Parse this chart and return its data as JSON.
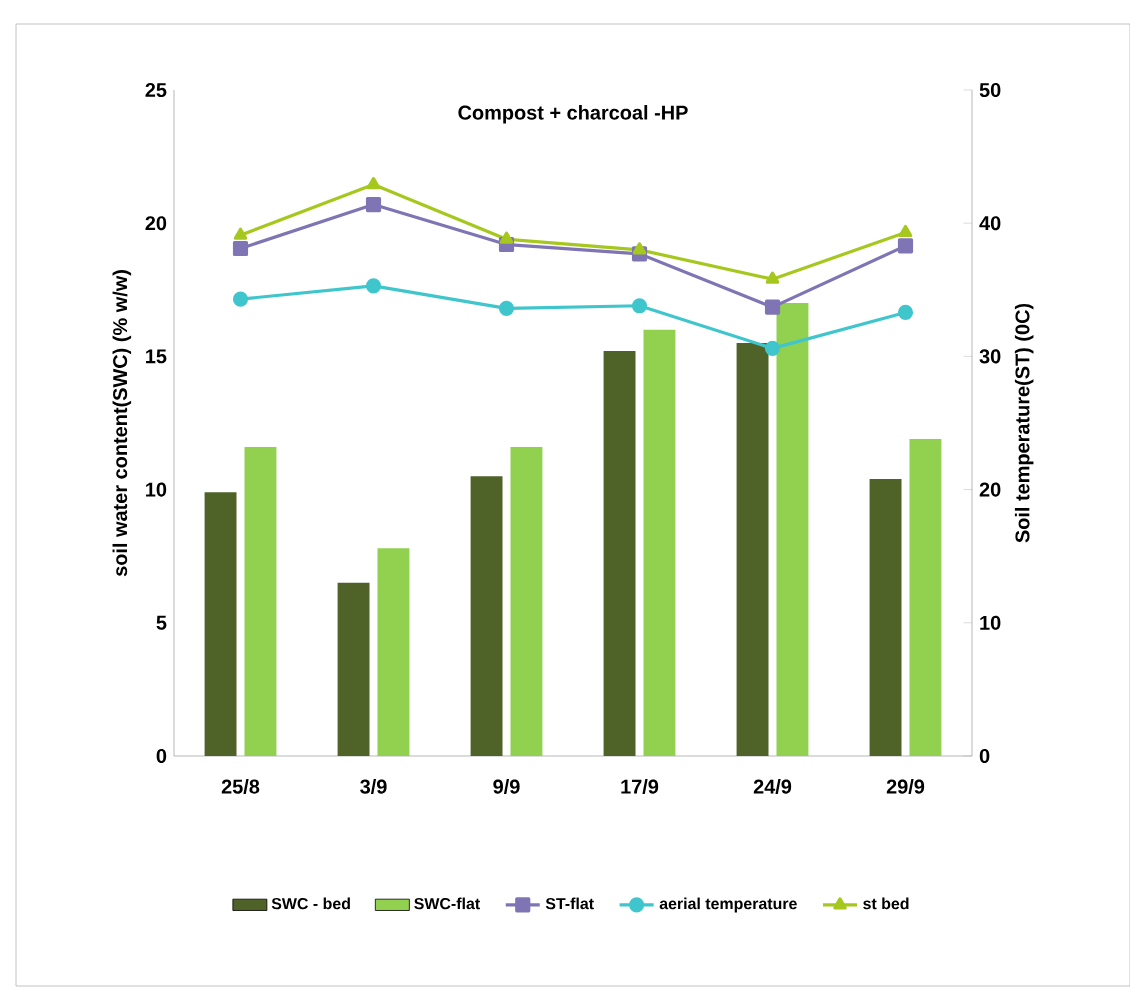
{
  "chart_data": {
    "type": "bar",
    "title": "Compost + charcoal -HP",
    "ylabel": "soil water content(SWC) (% w/w)",
    "y2label": "Soil temperature(ST) (0C)",
    "categories": [
      "25/8",
      "3/9",
      "9/9",
      "17/9",
      "24/9",
      "29/9"
    ],
    "series": [
      {
        "name": "SWC - bed",
        "color": "#4f6228",
        "values": [
          9.9,
          6.5,
          10.5,
          15.2,
          15.5,
          10.4
        ]
      },
      {
        "name": "SWC-flat",
        "color": "#92d050",
        "values": [
          11.6,
          7.8,
          11.6,
          16.0,
          17.0,
          11.9
        ]
      },
      {
        "name": "ST-flat",
        "type": "line",
        "axis": "y2",
        "marker": "square",
        "color": "#7f74b4",
        "values": [
          38.1,
          41.4,
          38.4,
          37.7,
          33.7,
          38.3
        ]
      },
      {
        "name": "aerial temperature",
        "type": "line",
        "axis": "y2",
        "marker": "circle",
        "color": "#3fc6cc",
        "values": [
          34.3,
          35.3,
          33.6,
          33.8,
          30.6,
          33.3
        ]
      },
      {
        "name": "st bed",
        "type": "line",
        "axis": "y2",
        "marker": "triangle",
        "color": "#a6c81e",
        "values": [
          39.1,
          42.9,
          38.8,
          38.0,
          35.8,
          39.3
        ]
      }
    ],
    "ylim": [
      0,
      25
    ],
    "yticks": [
      0,
      5,
      10,
      15,
      20,
      25
    ],
    "y2lim": [
      0,
      50
    ],
    "y2ticks": [
      0,
      10,
      20,
      30,
      40,
      50
    ],
    "grid": false,
    "legend": "bottom"
  }
}
